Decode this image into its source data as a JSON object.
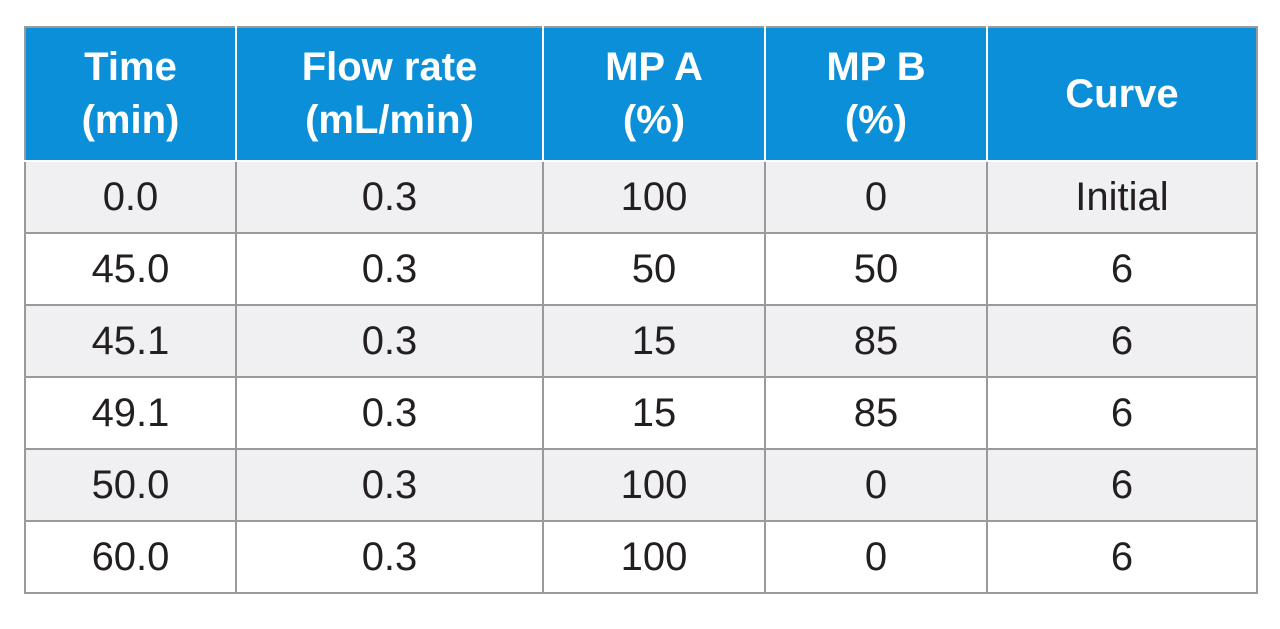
{
  "table": {
    "headers": [
      {
        "line1": "Time",
        "line2": "(min)"
      },
      {
        "line1": "Flow rate",
        "line2": "(mL/min)"
      },
      {
        "line1": "MP A",
        "line2": "(%)"
      },
      {
        "line1": "MP B",
        "line2": "(%)"
      },
      {
        "line1": "Curve",
        "line2": ""
      }
    ],
    "rows": [
      [
        "0.0",
        "0.3",
        "100",
        "0",
        "Initial"
      ],
      [
        "45.0",
        "0.3",
        "50",
        "50",
        "6"
      ],
      [
        "45.1",
        "0.3",
        "15",
        "85",
        "6"
      ],
      [
        "49.1",
        "0.3",
        "15",
        "85",
        "6"
      ],
      [
        "50.0",
        "0.3",
        "100",
        "0",
        "6"
      ],
      [
        "60.0",
        "0.3",
        "100",
        "0",
        "6"
      ]
    ]
  },
  "colors": {
    "header_bg": "#0a8fd8",
    "header_text": "#ffffff",
    "row_odd": "#f0f0f2",
    "row_even": "#ffffff",
    "grid": "#9a9a9a",
    "text": "#231f20"
  }
}
